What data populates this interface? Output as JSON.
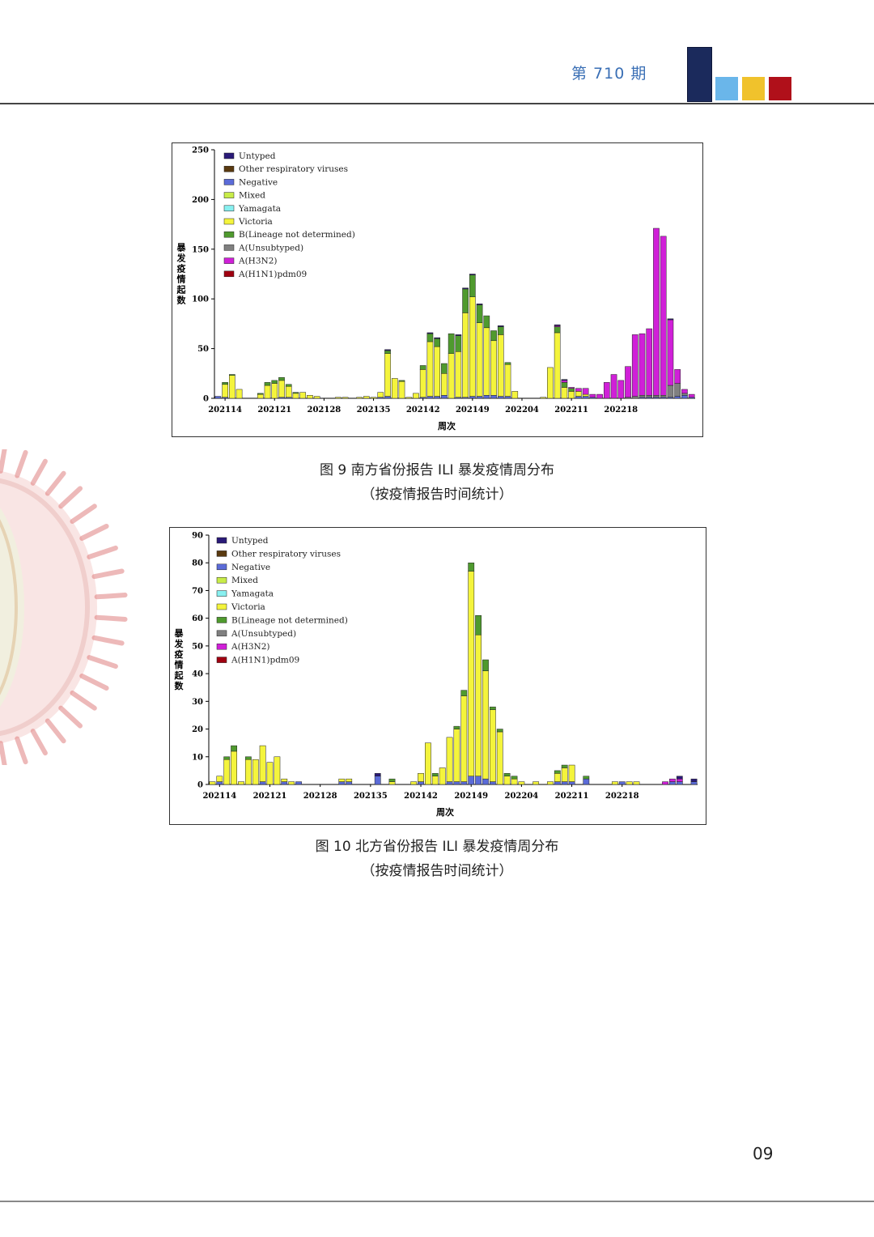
{
  "header": {
    "issue": "第 710 期"
  },
  "colors": {
    "navy": "#1b2a5c",
    "sky": "#6ab6ea",
    "gold": "#f0c22c",
    "red": "#b0101a"
  },
  "legend_colors": {
    "Untyped": "#2a1a78",
    "Other respiratory viruses": "#5a3a10",
    "Negative": "#5b6bd8",
    "Mixed": "#c8ec48",
    "Yamagata": "#88f0f0",
    "Victoria": "#f4f43c",
    "B(Lineage not determined)": "#4f9a2e",
    "A(Unsubtyped)": "#808080",
    "A(H3N2)": "#d020d8",
    "A(H1N1)pdm09": "#a00010"
  },
  "figures": [
    {
      "caption": "图 9    南方省份报告 ILI 暴发疫情周分布",
      "subcaption": "（按疫情报告时间统计）"
    },
    {
      "caption": "图 10    北方省份报告 ILI 暴发疫情周分布",
      "subcaption": "（按疫情报告时间统计）"
    }
  ],
  "chart_data": [
    {
      "type": "bar",
      "stacked": true,
      "xlabel": "周次",
      "ylabel": "暴发疫情起数",
      "ylim": [
        0,
        250
      ],
      "yticks": [
        0,
        50,
        100,
        150,
        200,
        250
      ],
      "xticks": [
        "202114",
        "202121",
        "202128",
        "202135",
        "202142",
        "202149",
        "202204",
        "202211",
        "202218"
      ],
      "legend": [
        "Untyped",
        "Other respiratory viruses",
        "Negative",
        "Mixed",
        "Yamagata",
        "Victoria",
        "B(Lineage not determined)",
        "A(Unsubtyped)",
        "A(H3N2)",
        "A(H1N1)pdm09"
      ],
      "legend_position": "top-left",
      "weeks": [
        "202113",
        "202114",
        "202115",
        "202116",
        "202117",
        "202118",
        "202119",
        "202120",
        "202121",
        "202122",
        "202123",
        "202124",
        "202125",
        "202126",
        "202127",
        "202128",
        "202129",
        "202130",
        "202131",
        "202132",
        "202133",
        "202134",
        "202135",
        "202136",
        "202137",
        "202138",
        "202139",
        "202140",
        "202141",
        "202142",
        "202143",
        "202144",
        "202145",
        "202146",
        "202147",
        "202148",
        "202149",
        "202150",
        "202151",
        "202152",
        "202201",
        "202202",
        "202203",
        "202204",
        "202205",
        "202206",
        "202207",
        "202208",
        "202209",
        "202210",
        "202211",
        "202212",
        "202213",
        "202214",
        "202215",
        "202216",
        "202217",
        "202218",
        "202219",
        "202220",
        "202221",
        "202222",
        "202223",
        "202224",
        "202225",
        "202226",
        "202227",
        "202228"
      ],
      "series": [
        {
          "name": "Negative",
          "values": [
            2,
            1,
            0,
            0,
            0,
            0,
            0,
            0,
            0,
            1,
            1,
            0,
            0,
            0,
            0,
            0,
            0,
            0,
            0,
            0,
            0,
            0,
            0,
            1,
            2,
            0,
            0,
            0,
            0,
            1,
            2,
            2,
            3,
            0,
            1,
            1,
            2,
            2,
            3,
            3,
            2,
            2,
            0,
            0,
            0,
            0,
            0,
            0,
            0,
            0,
            0,
            2,
            2,
            1,
            0,
            0,
            0,
            0,
            0,
            0,
            1,
            1,
            1,
            1,
            1,
            2,
            3,
            1
          ]
        },
        {
          "name": "Victoria",
          "values": [
            0,
            13,
            23,
            9,
            0,
            0,
            4,
            13,
            15,
            17,
            11,
            5,
            6,
            3,
            2,
            0,
            0,
            1,
            1,
            0,
            1,
            2,
            1,
            5,
            43,
            20,
            17,
            1,
            5,
            28,
            55,
            50,
            22,
            45,
            46,
            85,
            100,
            74,
            68,
            55,
            62,
            32,
            7,
            0,
            0,
            0,
            1,
            31,
            66,
            11,
            7,
            5,
            2,
            0,
            0,
            0,
            0,
            0,
            0,
            0,
            0,
            0,
            0,
            0,
            0,
            0,
            0,
            0
          ]
        },
        {
          "name": "B(Lineage not determined)",
          "values": [
            0,
            2,
            1,
            0,
            0,
            0,
            1,
            3,
            3,
            3,
            2,
            1,
            0,
            0,
            0,
            0,
            0,
            0,
            0,
            0,
            0,
            0,
            0,
            0,
            3,
            0,
            1,
            0,
            0,
            4,
            8,
            8,
            10,
            20,
            16,
            24,
            22,
            18,
            12,
            10,
            8,
            2,
            0,
            0,
            0,
            0,
            0,
            0,
            6,
            5,
            3,
            0,
            0,
            0,
            0,
            0,
            0,
            0,
            0,
            0,
            0,
            0,
            0,
            0,
            0,
            0,
            0,
            0
          ]
        },
        {
          "name": "A(Unsubtyped)",
          "values": [
            0,
            0,
            0,
            0,
            0,
            0,
            0,
            0,
            0,
            0,
            0,
            0,
            0,
            0,
            0,
            0,
            0,
            0,
            0,
            0,
            0,
            0,
            0,
            0,
            0,
            0,
            0,
            0,
            0,
            0,
            0,
            0,
            0,
            0,
            0,
            0,
            0,
            0,
            0,
            0,
            0,
            0,
            0,
            0,
            0,
            0,
            0,
            0,
            0,
            0,
            0,
            0,
            0,
            0,
            0,
            0,
            0,
            0,
            1,
            2,
            2,
            2,
            2,
            2,
            12,
            13,
            2,
            0
          ]
        },
        {
          "name": "A(H3N2)",
          "values": [
            0,
            0,
            0,
            0,
            0,
            0,
            0,
            0,
            0,
            0,
            0,
            0,
            0,
            0,
            0,
            0,
            0,
            0,
            0,
            0,
            0,
            0,
            0,
            0,
            0,
            0,
            0,
            0,
            0,
            0,
            0,
            0,
            0,
            0,
            0,
            0,
            0,
            0,
            0,
            0,
            0,
            0,
            0,
            0,
            0,
            0,
            0,
            0,
            1,
            2,
            1,
            3,
            6,
            3,
            4,
            16,
            24,
            18,
            31,
            62,
            62,
            67,
            168,
            160,
            66,
            14,
            4,
            3
          ]
        },
        {
          "name": "Untyped",
          "values": [
            0,
            0,
            0,
            0,
            0,
            0,
            0,
            0,
            0,
            0,
            0,
            0,
            0,
            0,
            0,
            0,
            0,
            0,
            0,
            0,
            0,
            0,
            0,
            0,
            1,
            0,
            0,
            0,
            0,
            0,
            1,
            1,
            0,
            0,
            1,
            1,
            1,
            1,
            0,
            0,
            1,
            0,
            0,
            0,
            0,
            0,
            0,
            0,
            1,
            1,
            0,
            0,
            0,
            0,
            0,
            0,
            0,
            0,
            0,
            0,
            0,
            0,
            0,
            0,
            1,
            0,
            0,
            0
          ]
        }
      ]
    },
    {
      "type": "bar",
      "stacked": true,
      "xlabel": "周次",
      "ylabel": "暴发疫情起数",
      "ylim": [
        0,
        90
      ],
      "yticks": [
        0,
        10,
        20,
        30,
        40,
        50,
        60,
        70,
        80,
        90
      ],
      "xticks": [
        "202114",
        "202121",
        "202128",
        "202135",
        "202142",
        "202149",
        "202204",
        "202211",
        "202218"
      ],
      "legend": [
        "Untyped",
        "Other respiratory viruses",
        "Negative",
        "Mixed",
        "Yamagata",
        "Victoria",
        "B(Lineage not determined)",
        "A(Unsubtyped)",
        "A(H3N2)",
        "A(H1N1)pdm09"
      ],
      "legend_position": "top-left",
      "weeks": [
        "202113",
        "202114",
        "202115",
        "202116",
        "202117",
        "202118",
        "202119",
        "202120",
        "202121",
        "202122",
        "202123",
        "202124",
        "202125",
        "202126",
        "202127",
        "202128",
        "202129",
        "202130",
        "202131",
        "202132",
        "202133",
        "202134",
        "202135",
        "202136",
        "202137",
        "202138",
        "202139",
        "202140",
        "202141",
        "202142",
        "202143",
        "202144",
        "202145",
        "202146",
        "202147",
        "202148",
        "202149",
        "202150",
        "202151",
        "202152",
        "202201",
        "202202",
        "202203",
        "202204",
        "202205",
        "202206",
        "202207",
        "202208",
        "202209",
        "202210",
        "202211",
        "202212",
        "202213",
        "202214",
        "202215",
        "202216",
        "202217",
        "202218",
        "202219",
        "202220",
        "202221",
        "202222",
        "202223",
        "202224",
        "202225",
        "202226",
        "202227",
        "202228"
      ],
      "series": [
        {
          "name": "Negative",
          "values": [
            0,
            1,
            0,
            0,
            0,
            0,
            0,
            1,
            0,
            0,
            1,
            0,
            1,
            0,
            0,
            0,
            0,
            0,
            1,
            1,
            0,
            0,
            0,
            3,
            0,
            0,
            0,
            0,
            0,
            1,
            0,
            0,
            0,
            1,
            1,
            1,
            3,
            3,
            2,
            1,
            0,
            0,
            0,
            0,
            0,
            0,
            0,
            0,
            1,
            1,
            1,
            0,
            2,
            0,
            0,
            0,
            0,
            1,
            0,
            0,
            0,
            0,
            0,
            0,
            1,
            1,
            0,
            1
          ]
        },
        {
          "name": "Victoria",
          "values": [
            1,
            2,
            9,
            12,
            1,
            9,
            9,
            13,
            8,
            10,
            1,
            1,
            0,
            0,
            0,
            0,
            0,
            0,
            1,
            1,
            0,
            0,
            0,
            0,
            0,
            1,
            0,
            0,
            1,
            3,
            15,
            3,
            6,
            16,
            19,
            31,
            74,
            51,
            39,
            26,
            19,
            3,
            2,
            1,
            0,
            1,
            0,
            1,
            3,
            5,
            6,
            0,
            0,
            0,
            0,
            0,
            1,
            0,
            1,
            1,
            0,
            0,
            0,
            0,
            0,
            0,
            0,
            0
          ]
        },
        {
          "name": "B(Lineage not determined)",
          "values": [
            0,
            0,
            1,
            2,
            0,
            1,
            0,
            0,
            0,
            0,
            0,
            0,
            0,
            0,
            0,
            0,
            0,
            0,
            0,
            0,
            0,
            0,
            0,
            0,
            0,
            1,
            0,
            0,
            0,
            0,
            0,
            1,
            0,
            0,
            1,
            2,
            3,
            7,
            4,
            1,
            1,
            1,
            1,
            0,
            0,
            0,
            0,
            0,
            1,
            1,
            0,
            0,
            1,
            0,
            0,
            0,
            0,
            0,
            0,
            0,
            0,
            0,
            0,
            0,
            0,
            0,
            0,
            0
          ]
        },
        {
          "name": "A(H3N2)",
          "values": [
            0,
            0,
            0,
            0,
            0,
            0,
            0,
            0,
            0,
            0,
            0,
            0,
            0,
            0,
            0,
            0,
            0,
            0,
            0,
            0,
            0,
            0,
            0,
            0,
            0,
            0,
            0,
            0,
            0,
            0,
            0,
            0,
            0,
            0,
            0,
            0,
            0,
            0,
            0,
            0,
            0,
            0,
            0,
            0,
            0,
            0,
            0,
            0,
            0,
            0,
            0,
            0,
            0,
            0,
            0,
            0,
            0,
            0,
            0,
            0,
            0,
            0,
            0,
            1,
            1,
            1,
            0,
            0
          ]
        },
        {
          "name": "Untyped",
          "values": [
            0,
            0,
            0,
            0,
            0,
            0,
            0,
            0,
            0,
            0,
            0,
            0,
            0,
            0,
            0,
            0,
            0,
            0,
            0,
            0,
            0,
            0,
            0,
            1,
            0,
            0,
            0,
            0,
            0,
            0,
            0,
            0,
            0,
            0,
            0,
            0,
            0,
            0,
            0,
            0,
            0,
            0,
            0,
            0,
            0,
            0,
            0,
            0,
            0,
            0,
            0,
            0,
            0,
            0,
            0,
            0,
            0,
            0,
            0,
            0,
            0,
            0,
            0,
            0,
            0,
            1,
            0,
            1
          ]
        }
      ]
    }
  ],
  "footer": {
    "page": "09"
  }
}
